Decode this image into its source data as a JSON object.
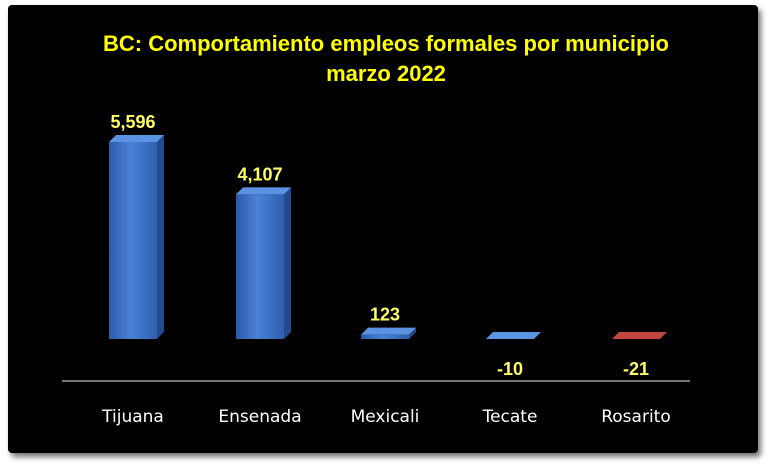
{
  "chart_data": {
    "type": "bar",
    "title": "BC:  Comportamiento empleos formales por municipio",
    "subtitle": "marzo 2022",
    "categories": [
      "Tijuana",
      "Ensenada",
      "Mexicali",
      "Tecate",
      "Rosarito"
    ],
    "values": [
      5596,
      4107,
      123,
      -10,
      -21
    ],
    "data_labels": [
      "5,596",
      "4,107",
      "123",
      "-10",
      "-21"
    ],
    "xlabel": "",
    "ylabel": "",
    "grid": false,
    "legend": "none",
    "colors": {
      "background": "#000000",
      "positive_bar": "#3a6fc4",
      "negative_bar_last": "#a0302b",
      "label_text": "#ffff66",
      "title_text": "#ffff00",
      "axis_text": "#ffffff",
      "axis_line": "#9a9a9a"
    }
  }
}
